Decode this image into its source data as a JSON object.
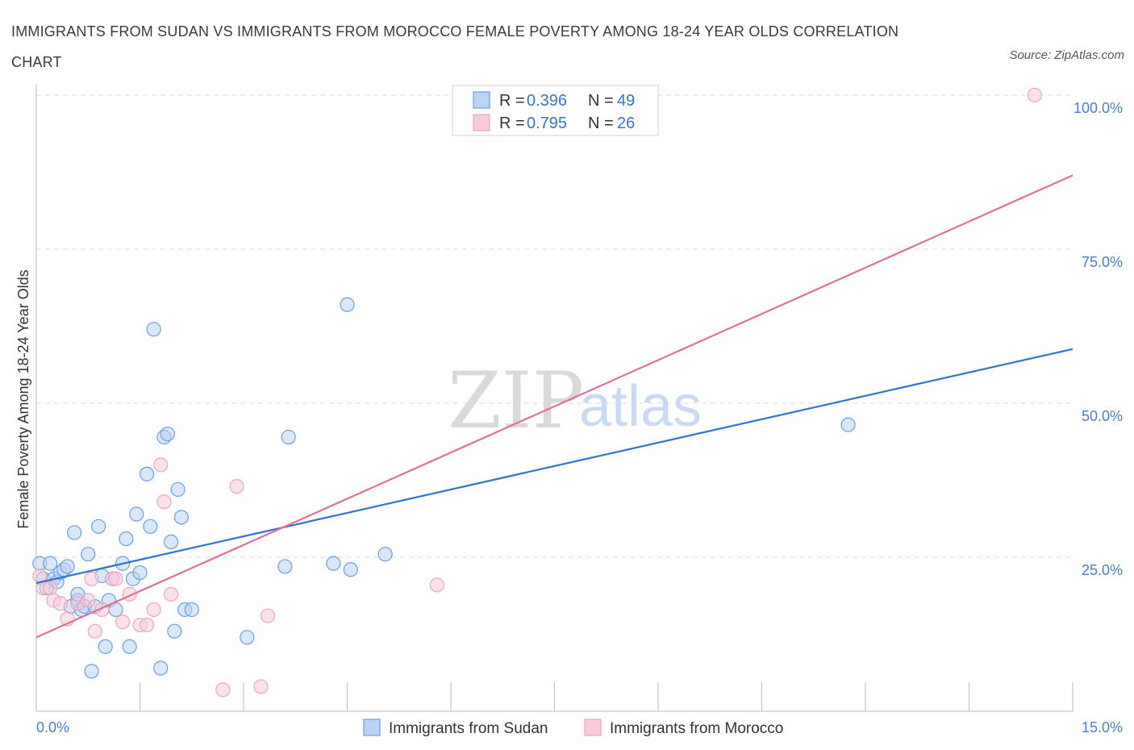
{
  "title": "IMMIGRANTS FROM SUDAN VS IMMIGRANTS FROM MOROCCO FEMALE POVERTY AMONG 18-24 YEAR OLDS CORRELATION CHART",
  "source": "Source: ZipAtlas.com",
  "watermark": {
    "zip": "ZIP",
    "atlas": "atlas"
  },
  "chart_data": {
    "type": "scatter",
    "title": "IMMIGRANTS FROM SUDAN VS IMMIGRANTS FROM MOROCCO FEMALE POVERTY AMONG 18-24 YEAR OLDS CORRELATION CHART",
    "xlabel": "",
    "ylabel": "Female Poverty Among 18-24 Year Olds",
    "xlim": [
      0,
      15
    ],
    "ylim": [
      0,
      100
    ],
    "x_tick_labels": [
      "0.0%",
      "15.0%"
    ],
    "y_ticks": [
      25,
      50,
      75,
      100
    ],
    "y_tick_labels": [
      "25.0%",
      "50.0%",
      "75.0%",
      "100.0%"
    ],
    "grid": true,
    "legend_position": "top-center",
    "series": [
      {
        "name": "Immigrants from Sudan",
        "color": "#6a9fe0",
        "fill": "#bcd4f4",
        "line_color": "#2f74d0",
        "R": "0.396",
        "N": "49",
        "trend": {
          "x": [
            0,
            15
          ],
          "y": [
            20.8,
            58.8
          ]
        },
        "points": [
          [
            0.05,
            24.0
          ],
          [
            0.1,
            21.5
          ],
          [
            0.15,
            20.0
          ],
          [
            0.2,
            24.0
          ],
          [
            0.25,
            21.5
          ],
          [
            0.3,
            21.0
          ],
          [
            0.35,
            22.5
          ],
          [
            0.4,
            23.0
          ],
          [
            0.45,
            23.5
          ],
          [
            0.5,
            17.0
          ],
          [
            0.55,
            29.0
          ],
          [
            0.6,
            18.0
          ],
          [
            0.6,
            19.0
          ],
          [
            0.65,
            16.5
          ],
          [
            0.7,
            17.0
          ],
          [
            0.75,
            25.5
          ],
          [
            0.8,
            6.5
          ],
          [
            0.85,
            17.0
          ],
          [
            0.9,
            30.0
          ],
          [
            0.95,
            22.0
          ],
          [
            1.0,
            10.5
          ],
          [
            1.05,
            18.0
          ],
          [
            1.1,
            21.5
          ],
          [
            1.15,
            16.5
          ],
          [
            1.25,
            24.0
          ],
          [
            1.3,
            28.0
          ],
          [
            1.35,
            10.5
          ],
          [
            1.4,
            21.5
          ],
          [
            1.45,
            32.0
          ],
          [
            1.5,
            22.5
          ],
          [
            1.6,
            38.5
          ],
          [
            1.65,
            30.0
          ],
          [
            1.7,
            62.0
          ],
          [
            1.8,
            7.0
          ],
          [
            1.85,
            44.5
          ],
          [
            1.9,
            45.0
          ],
          [
            1.95,
            27.5
          ],
          [
            2.0,
            13.0
          ],
          [
            2.05,
            36.0
          ],
          [
            2.1,
            31.5
          ],
          [
            2.15,
            16.5
          ],
          [
            2.25,
            16.5
          ],
          [
            3.05,
            12.0
          ],
          [
            3.6,
            23.5
          ],
          [
            3.65,
            44.5
          ],
          [
            4.3,
            24.0
          ],
          [
            4.5,
            66.0
          ],
          [
            4.55,
            23.0
          ],
          [
            5.05,
            25.5
          ],
          [
            11.75,
            46.5
          ]
        ]
      },
      {
        "name": "Immigrants from Morocco",
        "color": "#eea4bd",
        "fill": "#f8cad8",
        "line_color": "#e0709a",
        "R": "0.795",
        "N": "26",
        "trend": {
          "x": [
            0,
            15
          ],
          "y": [
            12.0,
            87.0
          ]
        },
        "points": [
          [
            0.05,
            22.0
          ],
          [
            0.1,
            20.0
          ],
          [
            0.2,
            20.0
          ],
          [
            0.25,
            18.0
          ],
          [
            0.35,
            17.5
          ],
          [
            0.45,
            15.0
          ],
          [
            0.6,
            17.5
          ],
          [
            0.75,
            18.0
          ],
          [
            0.8,
            21.5
          ],
          [
            0.85,
            13.0
          ],
          [
            0.95,
            16.5
          ],
          [
            1.1,
            21.5
          ],
          [
            1.15,
            21.5
          ],
          [
            1.25,
            14.5
          ],
          [
            1.35,
            19.0
          ],
          [
            1.5,
            14.0
          ],
          [
            1.6,
            14.0
          ],
          [
            1.7,
            16.5
          ],
          [
            1.8,
            40.0
          ],
          [
            1.85,
            34.0
          ],
          [
            1.95,
            19.0
          ],
          [
            2.7,
            3.5
          ],
          [
            2.9,
            36.5
          ],
          [
            3.25,
            4.0
          ],
          [
            3.35,
            15.5
          ],
          [
            5.8,
            20.5
          ],
          [
            14.45,
            100.0
          ]
        ]
      }
    ]
  }
}
